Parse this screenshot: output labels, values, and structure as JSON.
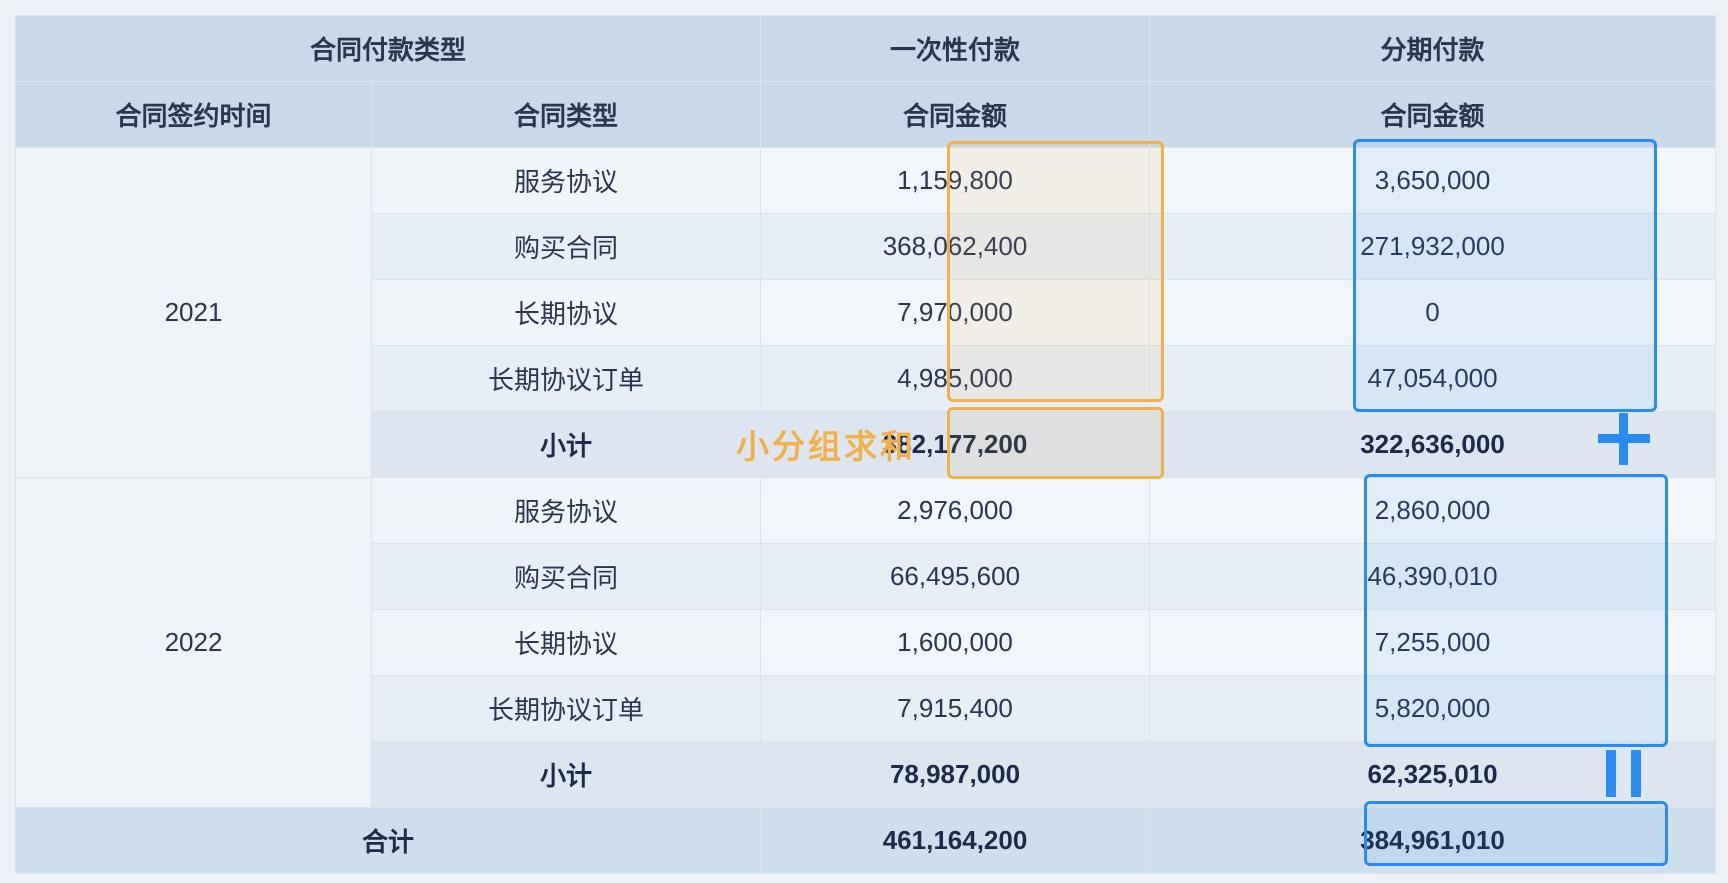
{
  "header": {
    "contract_payment_type": "合同付款类型",
    "one_time_payment": "一次性付款",
    "installment_payment": "分期付款",
    "signing_time": "合同签约时间",
    "contract_type": "合同类型",
    "amount_one_time": "合同金额",
    "amount_installment": "合同金额"
  },
  "groups": [
    {
      "year": "2021",
      "rows": [
        {
          "type": "服务协议",
          "one_time": "1,159,800",
          "installment": "3,650,000"
        },
        {
          "type": "购买合同",
          "one_time": "368,062,400",
          "installment": "271,932,000"
        },
        {
          "type": "长期协议",
          "one_time": "7,970,000",
          "installment": "0"
        },
        {
          "type": "长期协议订单",
          "one_time": "4,985,000",
          "installment": "47,054,000"
        }
      ],
      "subtotal": {
        "label": "小计",
        "one_time": "382,177,200",
        "installment": "322,636,000"
      }
    },
    {
      "year": "2022",
      "rows": [
        {
          "type": "服务协议",
          "one_time": "2,976,000",
          "installment": "2,860,000"
        },
        {
          "type": "购买合同",
          "one_time": "66,495,600",
          "installment": "46,390,010"
        },
        {
          "type": "长期协议",
          "one_time": "1,600,000",
          "installment": "7,255,000"
        },
        {
          "type": "长期协议订单",
          "one_time": "7,915,400",
          "installment": "5,820,000"
        }
      ],
      "subtotal": {
        "label": "小计",
        "one_time": "78,987,000",
        "installment": "62,325,010"
      }
    }
  ],
  "total": {
    "label": "合计",
    "one_time": "461,164,200",
    "installment": "384,961,010"
  },
  "annotation": {
    "text": "小分组求和"
  },
  "colors": {
    "orange": "#f0b04a",
    "blue": "#2b8cf0",
    "header_bg": "#c9d9ea"
  }
}
